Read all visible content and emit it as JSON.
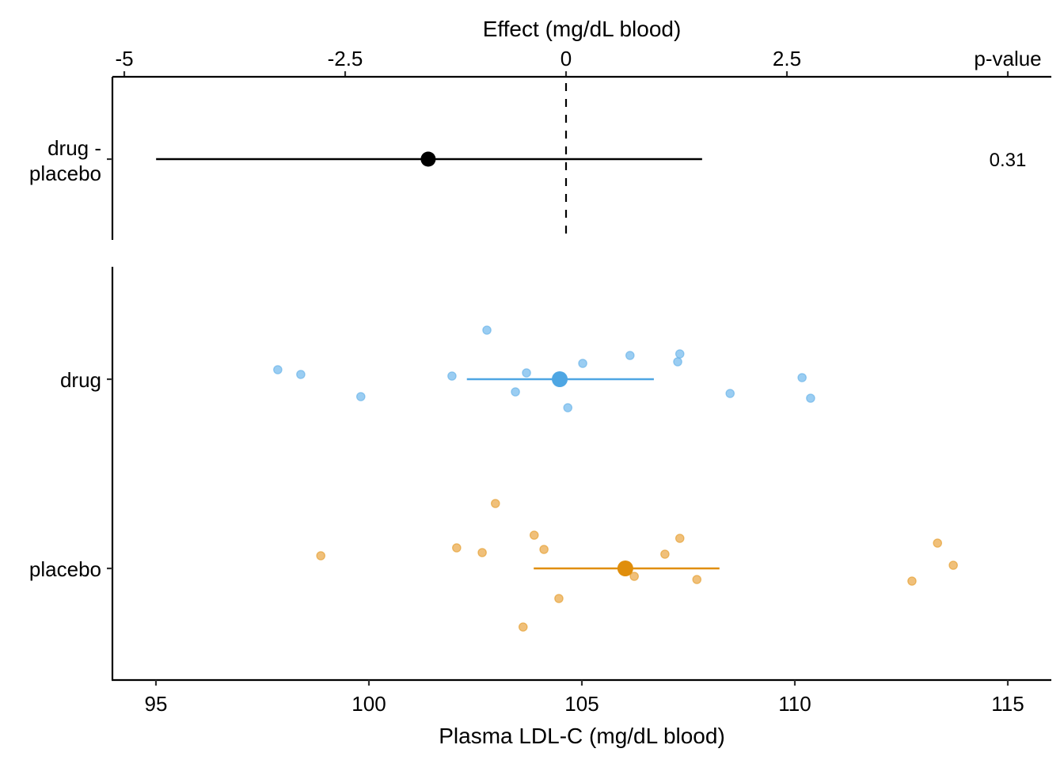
{
  "chart_data": {
    "type": "scatter",
    "description": "Estimation plot: raw data strip with group means and 95% CIs, plus effect-size panel",
    "top_panel": {
      "xlabel": "Effect (mg/dL blood)",
      "xlim": [
        -5.36,
        5.0
      ],
      "ticks": [
        {
          "value": -5,
          "label": "-5"
        },
        {
          "value": -2.5,
          "label": "-2.5"
        },
        {
          "value": 0,
          "label": "0"
        },
        {
          "value": 2.5,
          "label": "2.5"
        }
      ],
      "pvalue_header": "p-value",
      "reference_line": 0,
      "contrasts": [
        {
          "label_line1": "drug -",
          "label_line2": "placebo",
          "estimate": -1.56,
          "ci_low": -4.64,
          "ci_high": 1.54,
          "p_value": "0.31",
          "color": "#000000"
        }
      ]
    },
    "bottom_panel": {
      "xlabel": "Plasma LDL-C (mg/dL blood)",
      "xlim": [
        94.0,
        116.0
      ],
      "ticks": [
        {
          "value": 95,
          "label": "95"
        },
        {
          "value": 100,
          "label": "100"
        },
        {
          "value": 105,
          "label": "105"
        },
        {
          "value": 110,
          "label": "110"
        },
        {
          "value": 115,
          "label": "115"
        }
      ],
      "groups": [
        {
          "name": "drug",
          "color": "#4EA6E3",
          "point_color": "#9ACDF2",
          "mean": 104.48,
          "ci_low": 102.3,
          "ci_high": 106.69,
          "points": [
            {
              "x": 97.86,
              "jitter": 0.06
            },
            {
              "x": 98.4,
              "jitter": 0.03
            },
            {
              "x": 99.81,
              "jitter": -0.11
            },
            {
              "x": 101.95,
              "jitter": 0.02
            },
            {
              "x": 102.77,
              "jitter": 0.31
            },
            {
              "x": 103.44,
              "jitter": -0.08
            },
            {
              "x": 103.7,
              "jitter": 0.04
            },
            {
              "x": 104.67,
              "jitter": -0.18
            },
            {
              "x": 105.02,
              "jitter": 0.1
            },
            {
              "x": 106.13,
              "jitter": 0.15
            },
            {
              "x": 107.25,
              "jitter": 0.11
            },
            {
              "x": 107.3,
              "jitter": 0.16
            },
            {
              "x": 108.48,
              "jitter": -0.09
            },
            {
              "x": 110.17,
              "jitter": 0.01
            },
            {
              "x": 110.37,
              "jitter": -0.12
            }
          ]
        },
        {
          "name": "placebo",
          "color": "#E08E0B",
          "point_color": "#F0C07A",
          "mean": 106.02,
          "ci_low": 103.87,
          "ci_high": 108.23,
          "points": [
            {
              "x": 98.87,
              "jitter": 0.08
            },
            {
              "x": 102.06,
              "jitter": 0.13
            },
            {
              "x": 102.66,
              "jitter": 0.1
            },
            {
              "x": 102.97,
              "jitter": 0.41
            },
            {
              "x": 103.62,
              "jitter": -0.37
            },
            {
              "x": 103.88,
              "jitter": 0.21
            },
            {
              "x": 104.11,
              "jitter": 0.12
            },
            {
              "x": 104.46,
              "jitter": -0.19
            },
            {
              "x": 106.23,
              "jitter": -0.05
            },
            {
              "x": 106.95,
              "jitter": 0.09
            },
            {
              "x": 107.3,
              "jitter": 0.19
            },
            {
              "x": 107.7,
              "jitter": -0.07
            },
            {
              "x": 112.75,
              "jitter": -0.08
            },
            {
              "x": 113.35,
              "jitter": 0.16
            },
            {
              "x": 113.72,
              "jitter": 0.02
            }
          ]
        }
      ]
    }
  }
}
